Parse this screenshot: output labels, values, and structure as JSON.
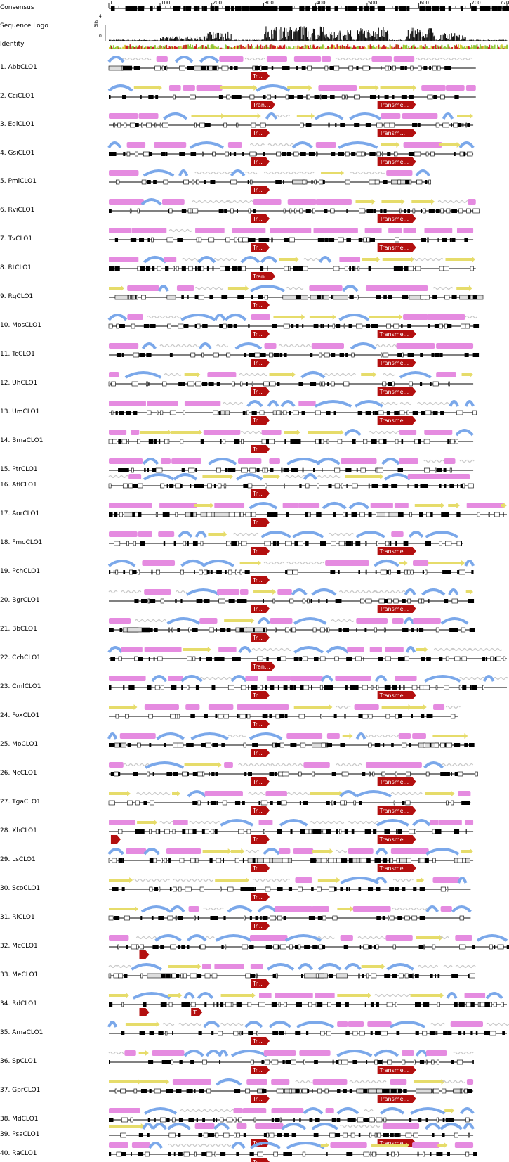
{
  "header_rows": {
    "consensus": "Consensus",
    "sequence_logo": "Sequence Logo",
    "identity": "Identity",
    "bits_label": "Bits",
    "bits_ticks": [
      "4",
      "0"
    ]
  },
  "ruler": {
    "ticks": [
      "1",
      "100",
      "200",
      "300",
      "400",
      "500",
      "600",
      "700",
      "770"
    ]
  },
  "sequences": [
    {
      "label": "1. AbbCLO1",
      "tags": [
        "Tr..."
      ]
    },
    {
      "label": "2. CciCLO1",
      "tags": [
        "Tran...",
        "Transme..."
      ]
    },
    {
      "label": "3. EglCLO1",
      "tags": [
        "Tr...",
        "Transm..."
      ]
    },
    {
      "label": "4. GsiCLO1",
      "tags": [
        "Tr...",
        "Transme..."
      ]
    },
    {
      "label": "5. PmiCLO1",
      "tags": [
        "Tr..."
      ]
    },
    {
      "label": "6. RviCLO1",
      "tags": [
        "Tr...",
        "Transme..."
      ]
    },
    {
      "label": "7. TvCLO1",
      "tags": [
        "Tr...",
        "Transme..."
      ]
    },
    {
      "label": "8. RtCLO1",
      "tags": [
        "Tran..."
      ]
    },
    {
      "label": "9. RgCLO1",
      "tags": [
        "Tr..."
      ]
    },
    {
      "label": "10. MosCLO1",
      "tags": [
        "Tr...",
        "Transme..."
      ]
    },
    {
      "label": "11. TcCLO1",
      "tags": [
        "Tr...",
        "Transme..."
      ]
    },
    {
      "label": "12. UhCLO1",
      "tags": [
        "Tr...",
        "Transme..."
      ]
    },
    {
      "label": "13. UmCLO1",
      "tags": [
        "Tr...",
        "Transme..."
      ]
    },
    {
      "label": "14. BmaCLO1",
      "tags": [
        "Tr..."
      ]
    },
    {
      "label": "15. PtrCLO1",
      "tags": []
    },
    {
      "label": "16. AflCLO1",
      "tags": [
        "Tr..."
      ]
    },
    {
      "label": "17. AorCLO1",
      "tags": [
        "Tr..."
      ]
    },
    {
      "label": "18. FmoCLO1",
      "tags": [
        "Tr...",
        "Transme..."
      ]
    },
    {
      "label": "19. PchCLO1",
      "tags": [
        "Tr..."
      ]
    },
    {
      "label": "20. BgrCLO1",
      "tags": [
        "Tr...",
        "Transme..."
      ]
    },
    {
      "label": "21. BbCLO1",
      "tags": [
        "Tr..."
      ]
    },
    {
      "label": "22. CchCLO1",
      "tags": [
        "Tran..."
      ]
    },
    {
      "label": "23. CmlCLO1",
      "tags": [
        "Tr...",
        "Transme..."
      ]
    },
    {
      "label": "24. FoxCLO1",
      "tags": [
        "Tr..."
      ]
    },
    {
      "label": "25. MoCLO1",
      "tags": [
        "Tr..."
      ]
    },
    {
      "label": "26. NcCLO1",
      "tags": [
        "Tr...",
        "Transme..."
      ]
    },
    {
      "label": "27. TgaCLO1",
      "tags": [
        "Tr...",
        "Transme..."
      ]
    },
    {
      "label": "28. XhCLO1",
      "tags": [
        "",
        "Tr...",
        "Transme..."
      ]
    },
    {
      "label": "29. LsCLO1",
      "tags": [
        "Tr...",
        "Transme..."
      ]
    },
    {
      "label": "30. ScoCLO1",
      "tags": [
        "Tr..."
      ]
    },
    {
      "label": "31. RiCLO1",
      "tags": [
        "Tr..."
      ]
    },
    {
      "label": "32. McCLO1",
      "tags": [
        ""
      ]
    },
    {
      "label": "33. MeCLO1",
      "tags": [
        "Tr..."
      ]
    },
    {
      "label": "34. RdCLO1",
      "tags": [
        "",
        "T"
      ]
    },
    {
      "label": "35. AmaCLO1",
      "tags": [
        "Tr..."
      ]
    },
    {
      "label": "36. SpCLO1",
      "tags": [
        "Tr...",
        "Transme..."
      ]
    },
    {
      "label": "37. GprCLO1",
      "tags": [
        "Tr...",
        "Transme..."
      ]
    },
    {
      "label": "38. MdCLO1",
      "tags": []
    },
    {
      "label": "39. PsaCLO1",
      "tags": [
        "Tr...",
        "Transme..."
      ]
    },
    {
      "label": "40. RaCLO1",
      "tags": [
        "Tr..."
      ]
    }
  ],
  "colors": {
    "helix": "#e58be0",
    "turn": "#7ba8ea",
    "strand": "#e6dc6a",
    "coil": "#c8c8c8",
    "annotation": "#b30f0f",
    "logo_bars": "#111111",
    "identity_green": "#8fc63c",
    "identity_red": "#cc2222",
    "identity_yellow": "#d8cf3a"
  }
}
